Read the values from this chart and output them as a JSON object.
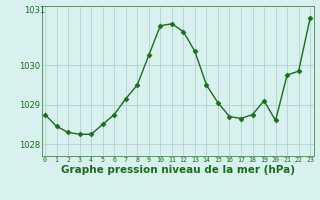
{
  "x": [
    0,
    1,
    2,
    3,
    4,
    5,
    6,
    7,
    8,
    9,
    10,
    11,
    12,
    13,
    14,
    15,
    16,
    17,
    18,
    19,
    20,
    21,
    22,
    23
  ],
  "y": [
    1028.75,
    1028.45,
    1028.3,
    1028.25,
    1028.25,
    1028.5,
    1028.75,
    1029.15,
    1029.5,
    1030.25,
    1031.0,
    1031.05,
    1030.85,
    1030.35,
    1029.5,
    1029.05,
    1028.7,
    1028.65,
    1028.75,
    1029.1,
    1028.6,
    1029.75,
    1029.85,
    1031.2
  ],
  "line_color": "#1a6e1a",
  "marker": "D",
  "marker_size": 2.5,
  "bg_color": "#d8f0ee",
  "grid_color": "#aacccc",
  "xlabel": "Graphe pression niveau de la mer (hPa)",
  "xlabel_fontsize": 7.5,
  "ytick_labels": [
    "1028",
    "1029",
    "1030"
  ],
  "ytick_values": [
    1028,
    1029,
    1030
  ],
  "ylim": [
    1027.7,
    1031.5
  ],
  "xlim": [
    -0.3,
    23.3
  ]
}
